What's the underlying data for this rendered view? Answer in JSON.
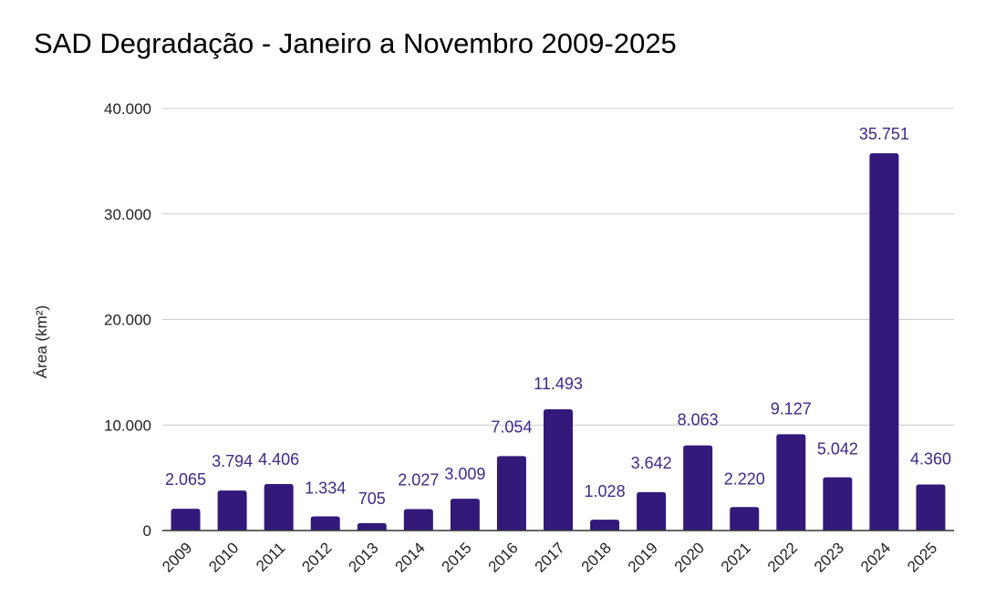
{
  "chart_data": {
    "type": "bar",
    "title": "SAD Degradação - Janeiro a Novembro 2009-2025",
    "xlabel": "",
    "ylabel": "Área (km²)",
    "ylim": [
      0,
      40000
    ],
    "yticks": [
      0,
      10000,
      20000,
      30000,
      40000
    ],
    "ytick_labels": [
      "0",
      "10.000",
      "20.000",
      "30.000",
      "40.000"
    ],
    "grid": true,
    "legend": "none",
    "bar_color": "#33197a",
    "label_color": "#3d2a87",
    "categories": [
      "2009",
      "2010",
      "2011",
      "2012",
      "2013",
      "2014",
      "2015",
      "2016",
      "2017",
      "2018",
      "2019",
      "2020",
      "2021",
      "2022",
      "2023",
      "2024",
      "2025"
    ],
    "values": [
      2065,
      3794,
      4406,
      1334,
      705,
      2027,
      3009,
      7054,
      11493,
      1028,
      3642,
      8063,
      2220,
      9127,
      5042,
      35751,
      4360
    ],
    "data_labels": [
      "2.065",
      "3.794",
      "4.406",
      "1.334",
      "705",
      "2.027",
      "3.009",
      "7.054",
      "11.493",
      "1.028",
      "3.642",
      "8.063",
      "2.220",
      "9.127",
      "5.042",
      "35.751",
      "4.360"
    ]
  }
}
